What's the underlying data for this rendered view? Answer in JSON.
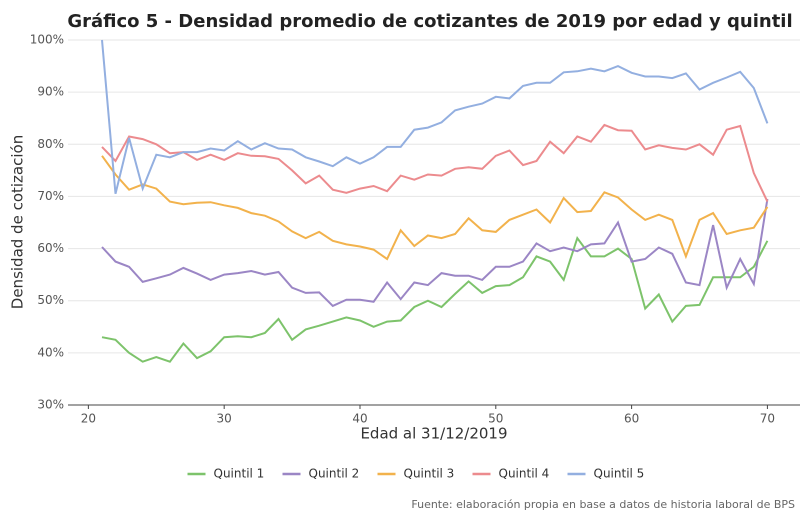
{
  "chart_data": {
    "type": "line",
    "title": "Gráfico 5 - Densidad promedio de cotizantes de 2019 por edad y quintil",
    "x_label": "Edad al 31/12/2019",
    "y_label": "Densidad de cotización",
    "source": "Fuente: elaboración propia en base a datos de historia laboral de BPS",
    "x": [
      21,
      22,
      23,
      24,
      25,
      26,
      27,
      28,
      29,
      30,
      31,
      32,
      33,
      34,
      35,
      36,
      37,
      38,
      39,
      40,
      41,
      42,
      43,
      44,
      45,
      46,
      47,
      48,
      49,
      50,
      51,
      52,
      53,
      54,
      55,
      56,
      57,
      58,
      59,
      60,
      61,
      62,
      63,
      64,
      65,
      66,
      67,
      68,
      69,
      70
    ],
    "series": [
      {
        "name": "Quintil 1",
        "color": "#7dc36b",
        "values": [
          43,
          42.5,
          40,
          38.3,
          39.2,
          38.3,
          41.8,
          39,
          40.3,
          43,
          43.2,
          43,
          43.8,
          46.5,
          42.5,
          44.5,
          45.2,
          46,
          46.8,
          46.2,
          45,
          46,
          46.2,
          48.8,
          50,
          48.8,
          51.3,
          53.7,
          51.5,
          52.8,
          53,
          54.5,
          58.5,
          57.5,
          54,
          62,
          58.5,
          58.5,
          60,
          58,
          48.5,
          51.2,
          46,
          49,
          49.2,
          54.5,
          54.5,
          54.5,
          56.5,
          61.5
        ]
      },
      {
        "name": "Quintil 2",
        "color": "#9b86c5",
        "values": [
          60.3,
          57.5,
          56.5,
          53.6,
          54.3,
          55,
          56.3,
          55.2,
          54,
          55,
          55.3,
          55.7,
          55,
          55.5,
          52.5,
          51.5,
          51.6,
          49,
          50.2,
          50.2,
          49.8,
          53.5,
          50.3,
          53.5,
          53,
          55.3,
          54.8,
          54.8,
          54,
          56.5,
          56.5,
          57.5,
          61,
          59.5,
          60.2,
          59.5,
          60.8,
          61,
          65,
          57.5,
          58,
          60.2,
          59,
          53.5,
          53,
          64.5,
          52.5,
          58,
          53.2,
          69.5
        ]
      },
      {
        "name": "Quintil 3",
        "color": "#f2b24c",
        "values": [
          77.8,
          74.2,
          71.3,
          72.3,
          71.5,
          69,
          68.5,
          68.8,
          68.9,
          68.3,
          67.8,
          66.8,
          66.3,
          65.2,
          63.3,
          62,
          63.2,
          61.5,
          60.8,
          60.4,
          59.8,
          58,
          63.5,
          60.5,
          62.5,
          62,
          62.8,
          65.8,
          63.5,
          63.2,
          65.5,
          66.5,
          67.5,
          65,
          69.7,
          67,
          67.2,
          70.8,
          69.8,
          67.5,
          65.5,
          66.5,
          65.5,
          58.5,
          65.5,
          66.8,
          62.8,
          63.5,
          64,
          68
        ]
      },
      {
        "name": "Quintil 4",
        "color": "#ec8b8e",
        "values": [
          79.5,
          76.8,
          81.5,
          81,
          80,
          78.3,
          78.5,
          77,
          78,
          77,
          78.3,
          77.8,
          77.7,
          77.2,
          75,
          72.5,
          74,
          71.3,
          70.7,
          71.5,
          72,
          71,
          74,
          73.2,
          74.2,
          74,
          75.3,
          75.6,
          75.3,
          77.8,
          78.8,
          76,
          76.8,
          80.5,
          78.3,
          81.5,
          80.5,
          83.7,
          82.7,
          82.6,
          79,
          79.8,
          79.3,
          79,
          80,
          78,
          82.8,
          83.5,
          74.5,
          69
        ]
      },
      {
        "name": "Quintil 5",
        "color": "#93afe0",
        "values": [
          100,
          70.5,
          81.2,
          71.5,
          78,
          77.5,
          78.5,
          78.5,
          79.2,
          78.8,
          80.6,
          79,
          80.2,
          79.2,
          79,
          77.5,
          76.7,
          75.8,
          77.5,
          76.3,
          77.5,
          79.5,
          79.5,
          82.8,
          83.2,
          84.2,
          86.5,
          87.2,
          87.8,
          89.1,
          88.8,
          91.2,
          91.8,
          91.8,
          93.8,
          94,
          94.5,
          94,
          95,
          93.7,
          93,
          93,
          92.7,
          93.6,
          90.5,
          91.8,
          92.8,
          93.9,
          90.8,
          84
        ]
      }
    ],
    "xlim": [
      18.5,
      72.4
    ],
    "xticks": [
      20,
      30,
      40,
      50,
      60,
      70
    ],
    "ylim": [
      30,
      100
    ],
    "yticks": [
      {
        "value": 30,
        "label": "30%"
      },
      {
        "value": 40,
        "label": "40%"
      },
      {
        "value": 50,
        "label": "50%"
      },
      {
        "value": 60,
        "label": "60%"
      },
      {
        "value": 70,
        "label": "70%"
      },
      {
        "value": 80,
        "label": "80%"
      },
      {
        "value": 90,
        "label": "90%"
      },
      {
        "value": 100,
        "label": "100%"
      }
    ],
    "grid": true,
    "legend": "bottom"
  }
}
